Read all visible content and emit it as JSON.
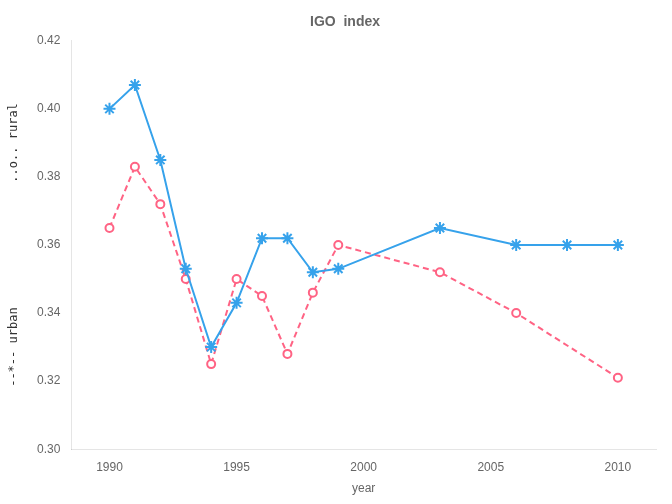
{
  "chart_data": {
    "type": "line",
    "title": "IGO  index",
    "xlabel": "year",
    "xlim": [
      1988.5,
      2011.5
    ],
    "xticks": [
      1990,
      1995,
      2000,
      2005,
      2010
    ],
    "ylim": [
      0.3,
      0.42
    ],
    "yticks": [
      {
        "value": 0.3,
        "label": "0.30"
      },
      0.32,
      0.34,
      0.36,
      0.38,
      {
        "value": 0.4,
        "label": "0.40"
      },
      0.42
    ],
    "grid": false,
    "series": [
      {
        "x": [
          1990,
          1991,
          1992,
          1993,
          1994,
          1995,
          1996,
          1997,
          1998,
          1999,
          2003,
          2006,
          2008,
          2010
        ],
        "values": [
          0.4,
          0.407,
          0.385,
          0.353,
          0.33,
          0.343,
          0.362,
          0.362,
          0.352,
          0.353,
          0.365,
          0.36,
          0.36,
          0.36
        ],
        "marker": "star",
        "line_style": "solid"
      },
      {
        "x": [
          1990,
          1991,
          1992,
          1993,
          1994,
          1995,
          1996,
          1997,
          1998,
          1999,
          2003,
          2006,
          2010
        ],
        "values": [
          0.365,
          0.383,
          0.372,
          0.35,
          0.325,
          0.35,
          0.345,
          0.328,
          0.346,
          0.36,
          0.352,
          0.34,
          0.321
        ],
        "marker": "circle",
        "line_style": "dashed"
      }
    ],
    "annotations": [
      "..o.. rural",
      "--*-- urban"
    ]
  }
}
